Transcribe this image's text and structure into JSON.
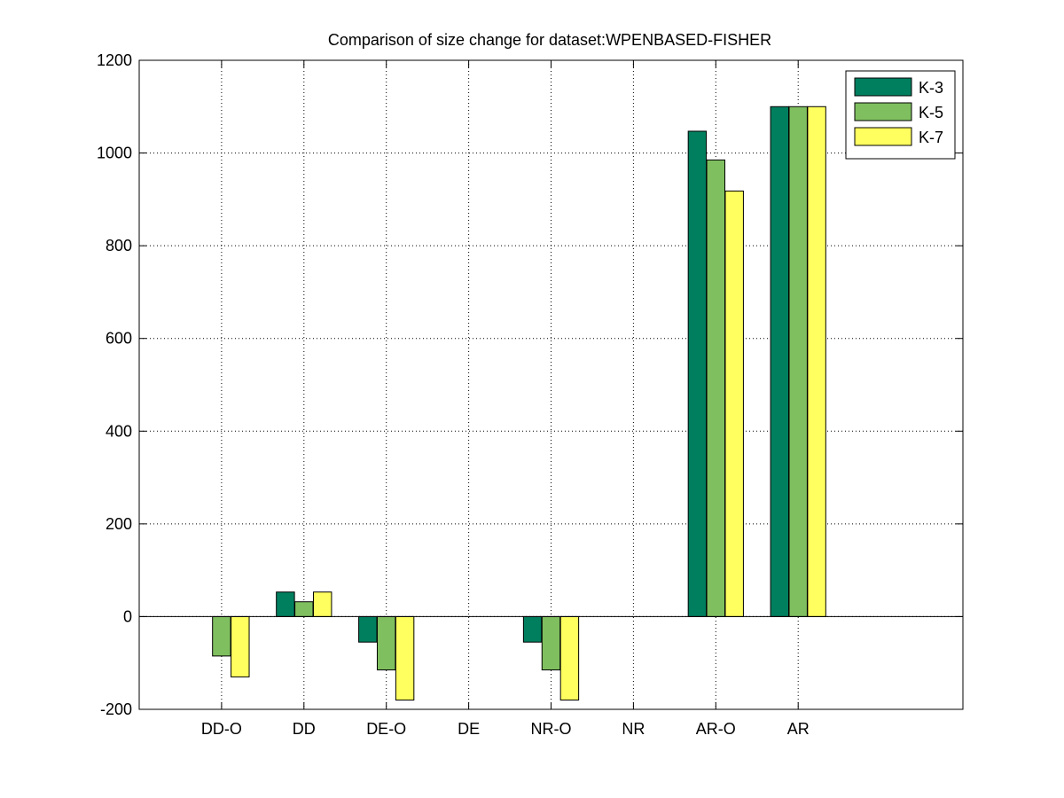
{
  "chart_data": {
    "type": "bar",
    "title": "Comparison of size change for dataset:WPENBASED-FISHER",
    "xlabel": "",
    "ylabel": "",
    "categories": [
      "DD-O",
      "DD",
      "DE-O",
      "DE",
      "NR-O",
      "NR",
      "AR-O",
      "AR"
    ],
    "series": [
      {
        "name": "K-3",
        "color": "#007f5f",
        "values": [
          0,
          53,
          -55,
          0,
          -55,
          0,
          1047,
          1100
        ]
      },
      {
        "name": "K-5",
        "color": "#7fbf5f",
        "values": [
          -85,
          32,
          -115,
          0,
          -115,
          0,
          985,
          1100
        ]
      },
      {
        "name": "K-7",
        "color": "#ffff5f",
        "values": [
          -130,
          53,
          -180,
          0,
          -180,
          0,
          918,
          1100
        ]
      }
    ],
    "ylim": [
      -200,
      1200
    ],
    "yticks": [
      -200,
      0,
      200,
      400,
      600,
      800,
      1000,
      1200
    ],
    "grid": true,
    "legend_position": "top-right"
  }
}
